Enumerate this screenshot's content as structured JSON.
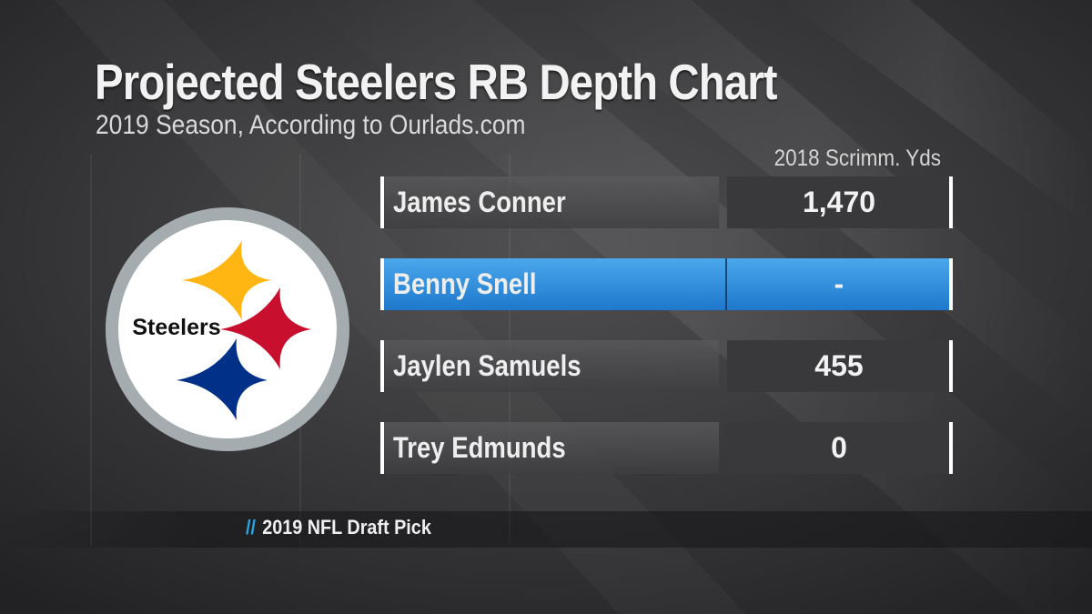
{
  "title": "Projected Steelers RB Depth Chart",
  "subtitle": "2019 Season, According to Ourlads.com",
  "column_header": "2018 Scrimm. Yds",
  "logo": {
    "text": "Steelers"
  },
  "rows": [
    {
      "name": "James Conner",
      "value": "1,470",
      "highlighted": false
    },
    {
      "name": "Benny Snell",
      "value": "-",
      "highlighted": true
    },
    {
      "name": "Jaylen Samuels",
      "value": "455",
      "highlighted": false
    },
    {
      "name": "Trey Edmunds",
      "value": "0",
      "highlighted": false
    }
  ],
  "footnote": {
    "marker": "//",
    "text": "2019 NFL Draft Pick"
  },
  "colors": {
    "highlight": "#2f8fe0",
    "logo_yellow": "#FFB612",
    "logo_red": "#C8102E",
    "logo_blue": "#003087",
    "logo_ring": "#a5acaf",
    "footnote_marker": "#29a7e3"
  }
}
